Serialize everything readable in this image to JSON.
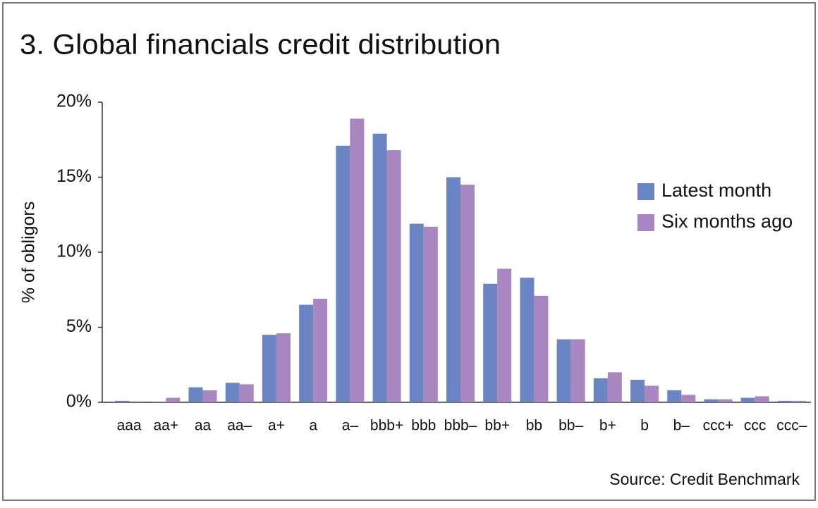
{
  "chart_data": {
    "type": "bar",
    "title": "3. Global financials credit distribution",
    "y_label": "% of obligors",
    "source": "Source: Credit Benchmark",
    "categories": [
      "aaa",
      "aa+",
      "aa",
      "aa–",
      "a+",
      "a",
      "a–",
      "bbb+",
      "bbb",
      "bbb–",
      "bb+",
      "bb",
      "bb–",
      "b+",
      "b",
      "b–",
      "ccc+",
      "ccc",
      "ccc–"
    ],
    "series": [
      {
        "name": "Latest month",
        "color": "#6a84c4",
        "values": [
          0.1,
          0.05,
          1.0,
          1.3,
          4.5,
          6.5,
          17.1,
          17.9,
          11.9,
          15.0,
          7.9,
          8.3,
          4.2,
          1.6,
          1.5,
          0.8,
          0.2,
          0.3,
          0.1
        ]
      },
      {
        "name": "Six months ago",
        "color": "#a886bf",
        "values": [
          0.0,
          0.3,
          0.8,
          1.2,
          4.6,
          6.9,
          18.9,
          16.8,
          11.7,
          14.5,
          8.9,
          7.1,
          4.2,
          2.0,
          1.1,
          0.5,
          0.2,
          0.4,
          0.1
        ]
      }
    ],
    "ylim": [
      0,
      20
    ],
    "yticks": [
      {
        "value": 0,
        "label": "0%"
      },
      {
        "value": 5,
        "label": "5%"
      },
      {
        "value": 10,
        "label": "10%"
      },
      {
        "value": 15,
        "label": "15%"
      },
      {
        "value": 20,
        "label": "20%"
      }
    ],
    "legend": "right"
  }
}
